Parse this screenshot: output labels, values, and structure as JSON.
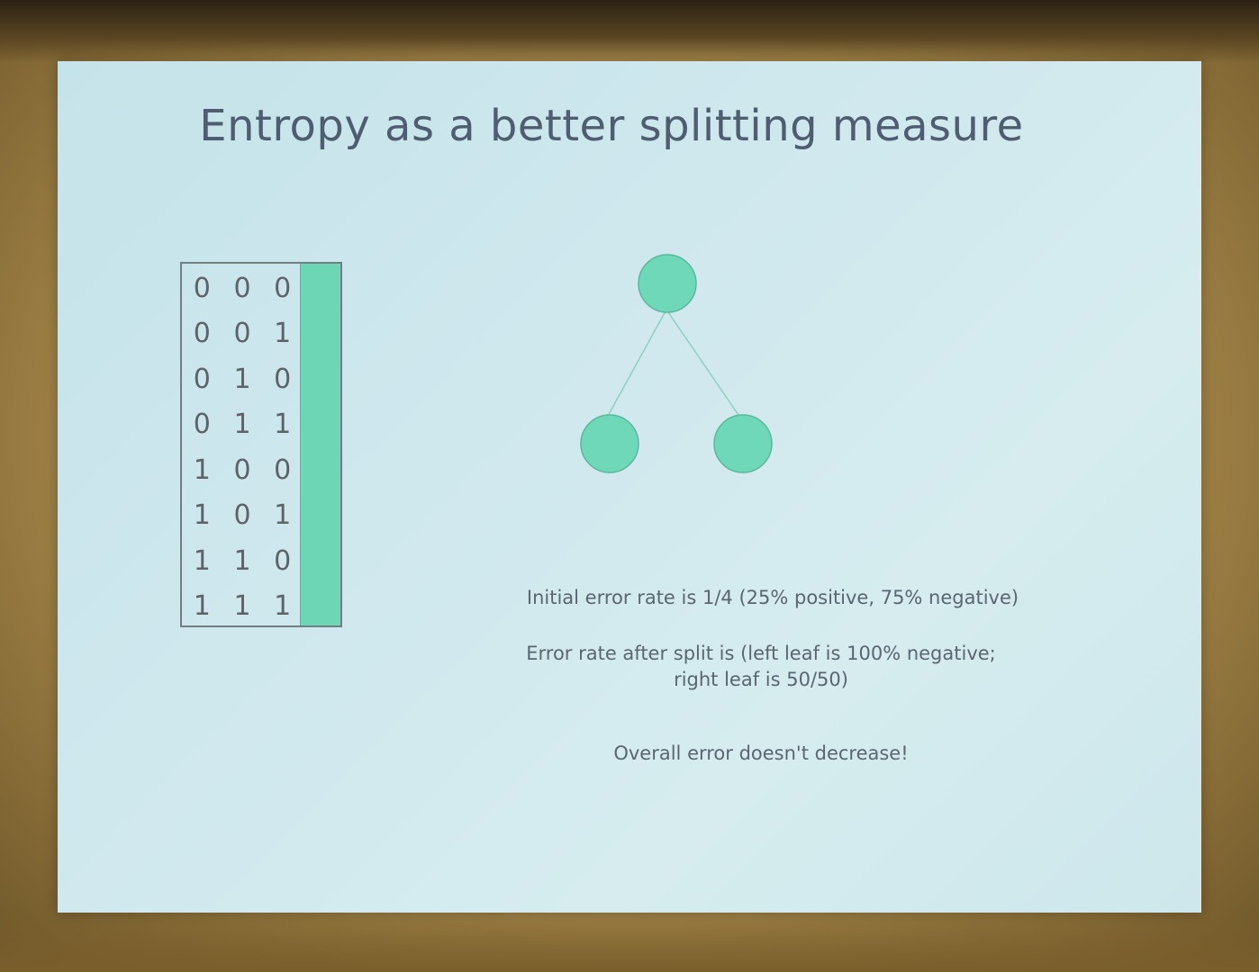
{
  "slide": {
    "title": "Entropy as a better splitting measure",
    "truth_table": [
      [
        "0",
        "0",
        "0"
      ],
      [
        "0",
        "0",
        "1"
      ],
      [
        "0",
        "1",
        "0"
      ],
      [
        "0",
        "1",
        "1"
      ],
      [
        "1",
        "0",
        "0"
      ],
      [
        "1",
        "0",
        "1"
      ],
      [
        "1",
        "1",
        "0"
      ],
      [
        "1",
        "1",
        "1"
      ]
    ],
    "captions": {
      "initial_error": "Initial error rate is 1/4  (25% positive, 75% negative)",
      "after_split_line1": "Error rate after split is   (left leaf is 100% negative;",
      "after_split_line2": "right leaf is 50/50)",
      "overall": "Overall error doesn't decrease!"
    },
    "colors": {
      "node_fill": "#6fd8b8",
      "table_bar": "#6dd6b4",
      "background": "#cfe8ee"
    }
  }
}
